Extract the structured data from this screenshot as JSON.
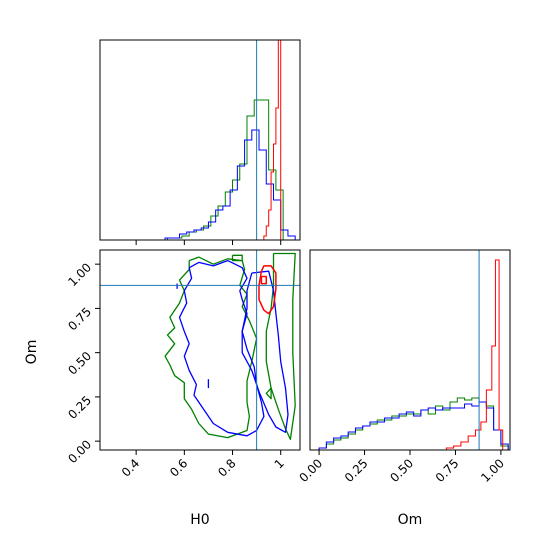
{
  "chart_data": {
    "type": "corner",
    "parameters": [
      "H0",
      "Om"
    ],
    "truth": {
      "H0": 0.9,
      "Om": 0.88
    },
    "colors": {
      "red": "#ff0000",
      "green": "#008000",
      "blue": "#0000ff",
      "truth": "#1f77b4"
    },
    "panels": {
      "h0_hist": {
        "xlim": [
          0.25,
          1.08
        ],
        "ticks": [
          0.4,
          0.6,
          0.8,
          1.0
        ],
        "series": {
          "red": {
            "edges": [
              0.93,
              0.94,
              0.95,
              0.96,
              0.97,
              0.98,
              0.99,
              1.0
            ],
            "heights": [
              0.02,
              0.07,
              0.15,
              0.34,
              0.48,
              0.66,
              1.0
            ]
          },
          "green": {
            "edges": [
              0.53,
              0.56,
              0.59,
              0.62,
              0.65,
              0.68,
              0.71,
              0.74,
              0.77,
              0.8,
              0.83,
              0.86,
              0.89,
              0.92,
              0.95,
              0.98,
              1.01,
              1.04
            ],
            "heights": [
              0.01,
              0.01,
              0.02,
              0.04,
              0.05,
              0.07,
              0.12,
              0.17,
              0.24,
              0.3,
              0.38,
              0.62,
              0.7,
              0.7,
              0.35,
              0.25,
              0.0
            ]
          },
          "blue": {
            "edges": [
              0.52,
              0.55,
              0.58,
              0.61,
              0.64,
              0.67,
              0.7,
              0.73,
              0.76,
              0.79,
              0.82,
              0.85,
              0.88,
              0.91,
              0.94,
              0.97,
              1.0,
              1.03,
              1.06
            ],
            "heights": [
              0.01,
              0.01,
              0.03,
              0.04,
              0.05,
              0.06,
              0.09,
              0.15,
              0.17,
              0.25,
              0.37,
              0.5,
              0.55,
              0.45,
              0.28,
              0.2,
              0.05,
              0.02
            ]
          }
        }
      },
      "om_hist": {
        "xlim": [
          -0.05,
          1.05
        ],
        "ticks": [
          0.0,
          0.25,
          0.5,
          0.75,
          1.0
        ],
        "tick_labels": [
          "0.00",
          "0.25",
          "0.50",
          "0.75",
          "1.00"
        ],
        "series": {
          "red": {
            "edges": [
              0.7,
              0.74,
              0.78,
              0.82,
              0.86,
              0.89,
              0.92,
              0.95,
              0.97,
              0.99,
              1.01
            ],
            "heights": [
              0.01,
              0.02,
              0.04,
              0.07,
              0.1,
              0.14,
              0.3,
              0.52,
              0.95,
              0.1
            ]
          },
          "green": {
            "edges": [
              0.0,
              0.04,
              0.08,
              0.12,
              0.16,
              0.2,
              0.24,
              0.28,
              0.32,
              0.36,
              0.4,
              0.44,
              0.48,
              0.52,
              0.56,
              0.6,
              0.64,
              0.68,
              0.72,
              0.76,
              0.8,
              0.84,
              0.88,
              0.92,
              0.96,
              1.0,
              1.04
            ],
            "heights": [
              0.01,
              0.03,
              0.05,
              0.06,
              0.08,
              0.1,
              0.12,
              0.13,
              0.15,
              0.15,
              0.17,
              0.17,
              0.18,
              0.18,
              0.2,
              0.18,
              0.22,
              0.2,
              0.24,
              0.26,
              0.25,
              0.26,
              0.24,
              0.22,
              0.1,
              0.02
            ]
          },
          "blue": {
            "edges": [
              0.0,
              0.04,
              0.08,
              0.12,
              0.16,
              0.2,
              0.24,
              0.28,
              0.32,
              0.36,
              0.4,
              0.44,
              0.48,
              0.52,
              0.56,
              0.6,
              0.64,
              0.68,
              0.72,
              0.76,
              0.8,
              0.84,
              0.88,
              0.92,
              0.96,
              1.0,
              1.04
            ],
            "heights": [
              0.01,
              0.04,
              0.06,
              0.07,
              0.09,
              0.11,
              0.12,
              0.14,
              0.14,
              0.16,
              0.16,
              0.18,
              0.19,
              0.17,
              0.2,
              0.21,
              0.2,
              0.21,
              0.21,
              0.21,
              0.23,
              0.22,
              0.24,
              0.21,
              0.1,
              0.03
            ]
          }
        }
      },
      "joint": {
        "xlim": [
          0.25,
          1.08
        ],
        "ylim": [
          -0.05,
          1.08
        ],
        "xticks": [
          0.4,
          0.6,
          0.8,
          1.0
        ],
        "yticks": [
          0.0,
          0.25,
          0.5,
          0.75,
          1.0
        ],
        "ytick_labels": [
          "0.00",
          "0.25",
          "0.50",
          "0.75",
          "1.00"
        ],
        "contours": {
          "green": [
            [
              [
                0.97,
                1.06
              ],
              [
                0.97,
                0.88
              ],
              [
                0.96,
                0.75
              ],
              [
                0.94,
                0.62
              ],
              [
                0.94,
                0.45
              ],
              [
                0.96,
                0.3
              ],
              [
                0.99,
                0.18
              ],
              [
                1.02,
                0.07
              ],
              [
                1.04,
                0.01
              ],
              [
                1.06,
                0.2
              ],
              [
                1.05,
                0.5
              ],
              [
                1.05,
                0.8
              ],
              [
                1.06,
                1.06
              ],
              [
                1.01,
                1.06
              ],
              [
                0.97,
                1.06
              ]
            ],
            [
              [
                0.62,
                1.02
              ],
              [
                0.62,
                0.97
              ],
              [
                0.58,
                0.91
              ],
              [
                0.6,
                0.85
              ],
              [
                0.58,
                0.78
              ],
              [
                0.54,
                0.7
              ],
              [
                0.56,
                0.64
              ],
              [
                0.53,
                0.6
              ],
              [
                0.56,
                0.55
              ],
              [
                0.52,
                0.48
              ],
              [
                0.54,
                0.43
              ],
              [
                0.56,
                0.37
              ],
              [
                0.6,
                0.33
              ],
              [
                0.6,
                0.24
              ],
              [
                0.63,
                0.18
              ],
              [
                0.66,
                0.1
              ],
              [
                0.7,
                0.04
              ],
              [
                0.78,
                0.02
              ],
              [
                0.86,
                0.06
              ],
              [
                0.87,
                0.14
              ],
              [
                0.86,
                0.22
              ],
              [
                0.86,
                0.34
              ],
              [
                0.88,
                0.45
              ],
              [
                0.9,
                0.58
              ],
              [
                0.87,
                0.68
              ],
              [
                0.84,
                0.76
              ],
              [
                0.86,
                0.83
              ],
              [
                0.83,
                0.88
              ],
              [
                0.85,
                0.97
              ],
              [
                0.84,
                1.02
              ],
              [
                0.78,
                1.03
              ],
              [
                0.72,
                1.0
              ],
              [
                0.66,
                1.04
              ],
              [
                0.62,
                1.02
              ]
            ],
            [
              [
                0.8,
                1.05
              ],
              [
                0.8,
                1.02
              ],
              [
                0.84,
                1.02
              ],
              [
                0.84,
                1.05
              ],
              [
                0.8,
                1.05
              ]
            ],
            [
              [
                0.96,
                0.3
              ],
              [
                0.94,
                0.27
              ],
              [
                0.96,
                0.24
              ],
              [
                0.96,
                0.3
              ]
            ]
          ],
          "blue": [
            [
              [
                0.62,
                0.98
              ],
              [
                0.63,
                0.92
              ],
              [
                0.6,
                0.85
              ],
              [
                0.61,
                0.78
              ],
              [
                0.58,
                0.7
              ],
              [
                0.6,
                0.62
              ],
              [
                0.62,
                0.55
              ],
              [
                0.6,
                0.48
              ],
              [
                0.62,
                0.4
              ],
              [
                0.65,
                0.32
              ],
              [
                0.64,
                0.26
              ],
              [
                0.68,
                0.18
              ],
              [
                0.72,
                0.1
              ],
              [
                0.78,
                0.05
              ],
              [
                0.86,
                0.03
              ],
              [
                0.9,
                0.06
              ],
              [
                0.93,
                0.14
              ],
              [
                0.92,
                0.22
              ],
              [
                0.9,
                0.32
              ],
              [
                0.89,
                0.42
              ],
              [
                0.86,
                0.52
              ],
              [
                0.84,
                0.62
              ],
              [
                0.86,
                0.72
              ],
              [
                0.84,
                0.8
              ],
              [
                0.83,
                0.85
              ],
              [
                0.86,
                0.92
              ],
              [
                0.84,
                0.98
              ],
              [
                0.78,
                1.02
              ],
              [
                0.72,
                0.99
              ],
              [
                0.66,
                1.01
              ],
              [
                0.62,
                0.98
              ]
            ],
            [
              [
                0.88,
                0.95
              ],
              [
                0.86,
                0.85
              ],
              [
                0.86,
                0.75
              ],
              [
                0.84,
                0.62
              ],
              [
                0.84,
                0.5
              ],
              [
                0.88,
                0.4
              ],
              [
                0.91,
                0.28
              ],
              [
                0.95,
                0.15
              ],
              [
                0.98,
                0.08
              ],
              [
                1.02,
                0.05
              ],
              [
                1.03,
                0.15
              ],
              [
                1.02,
                0.3
              ],
              [
                1.0,
                0.45
              ],
              [
                0.99,
                0.6
              ],
              [
                0.98,
                0.72
              ],
              [
                0.97,
                0.85
              ],
              [
                0.95,
                0.96
              ],
              [
                0.88,
                0.95
              ]
            ],
            [
              [
                0.7,
                0.35
              ],
              [
                0.7,
                0.3
              ]
            ],
            [
              [
                0.57,
                0.89
              ],
              [
                0.57,
                0.86
              ]
            ]
          ],
          "red": [
            [
              [
                0.92,
                0.96
              ],
              [
                0.91,
                0.88
              ],
              [
                0.91,
                0.8
              ],
              [
                0.93,
                0.74
              ],
              [
                0.95,
                0.72
              ],
              [
                0.97,
                0.76
              ],
              [
                0.98,
                0.86
              ],
              [
                0.98,
                0.95
              ],
              [
                0.96,
                0.99
              ],
              [
                0.93,
                0.99
              ],
              [
                0.92,
                0.96
              ]
            ],
            [
              [
                0.92,
                0.93
              ],
              [
                0.92,
                0.89
              ],
              [
                0.94,
                0.89
              ],
              [
                0.94,
                0.93
              ],
              [
                0.92,
                0.93
              ]
            ]
          ]
        }
      }
    },
    "xlabel_joint": "H0",
    "ylabel_joint": "Om",
    "xlabel_om": "Om"
  }
}
